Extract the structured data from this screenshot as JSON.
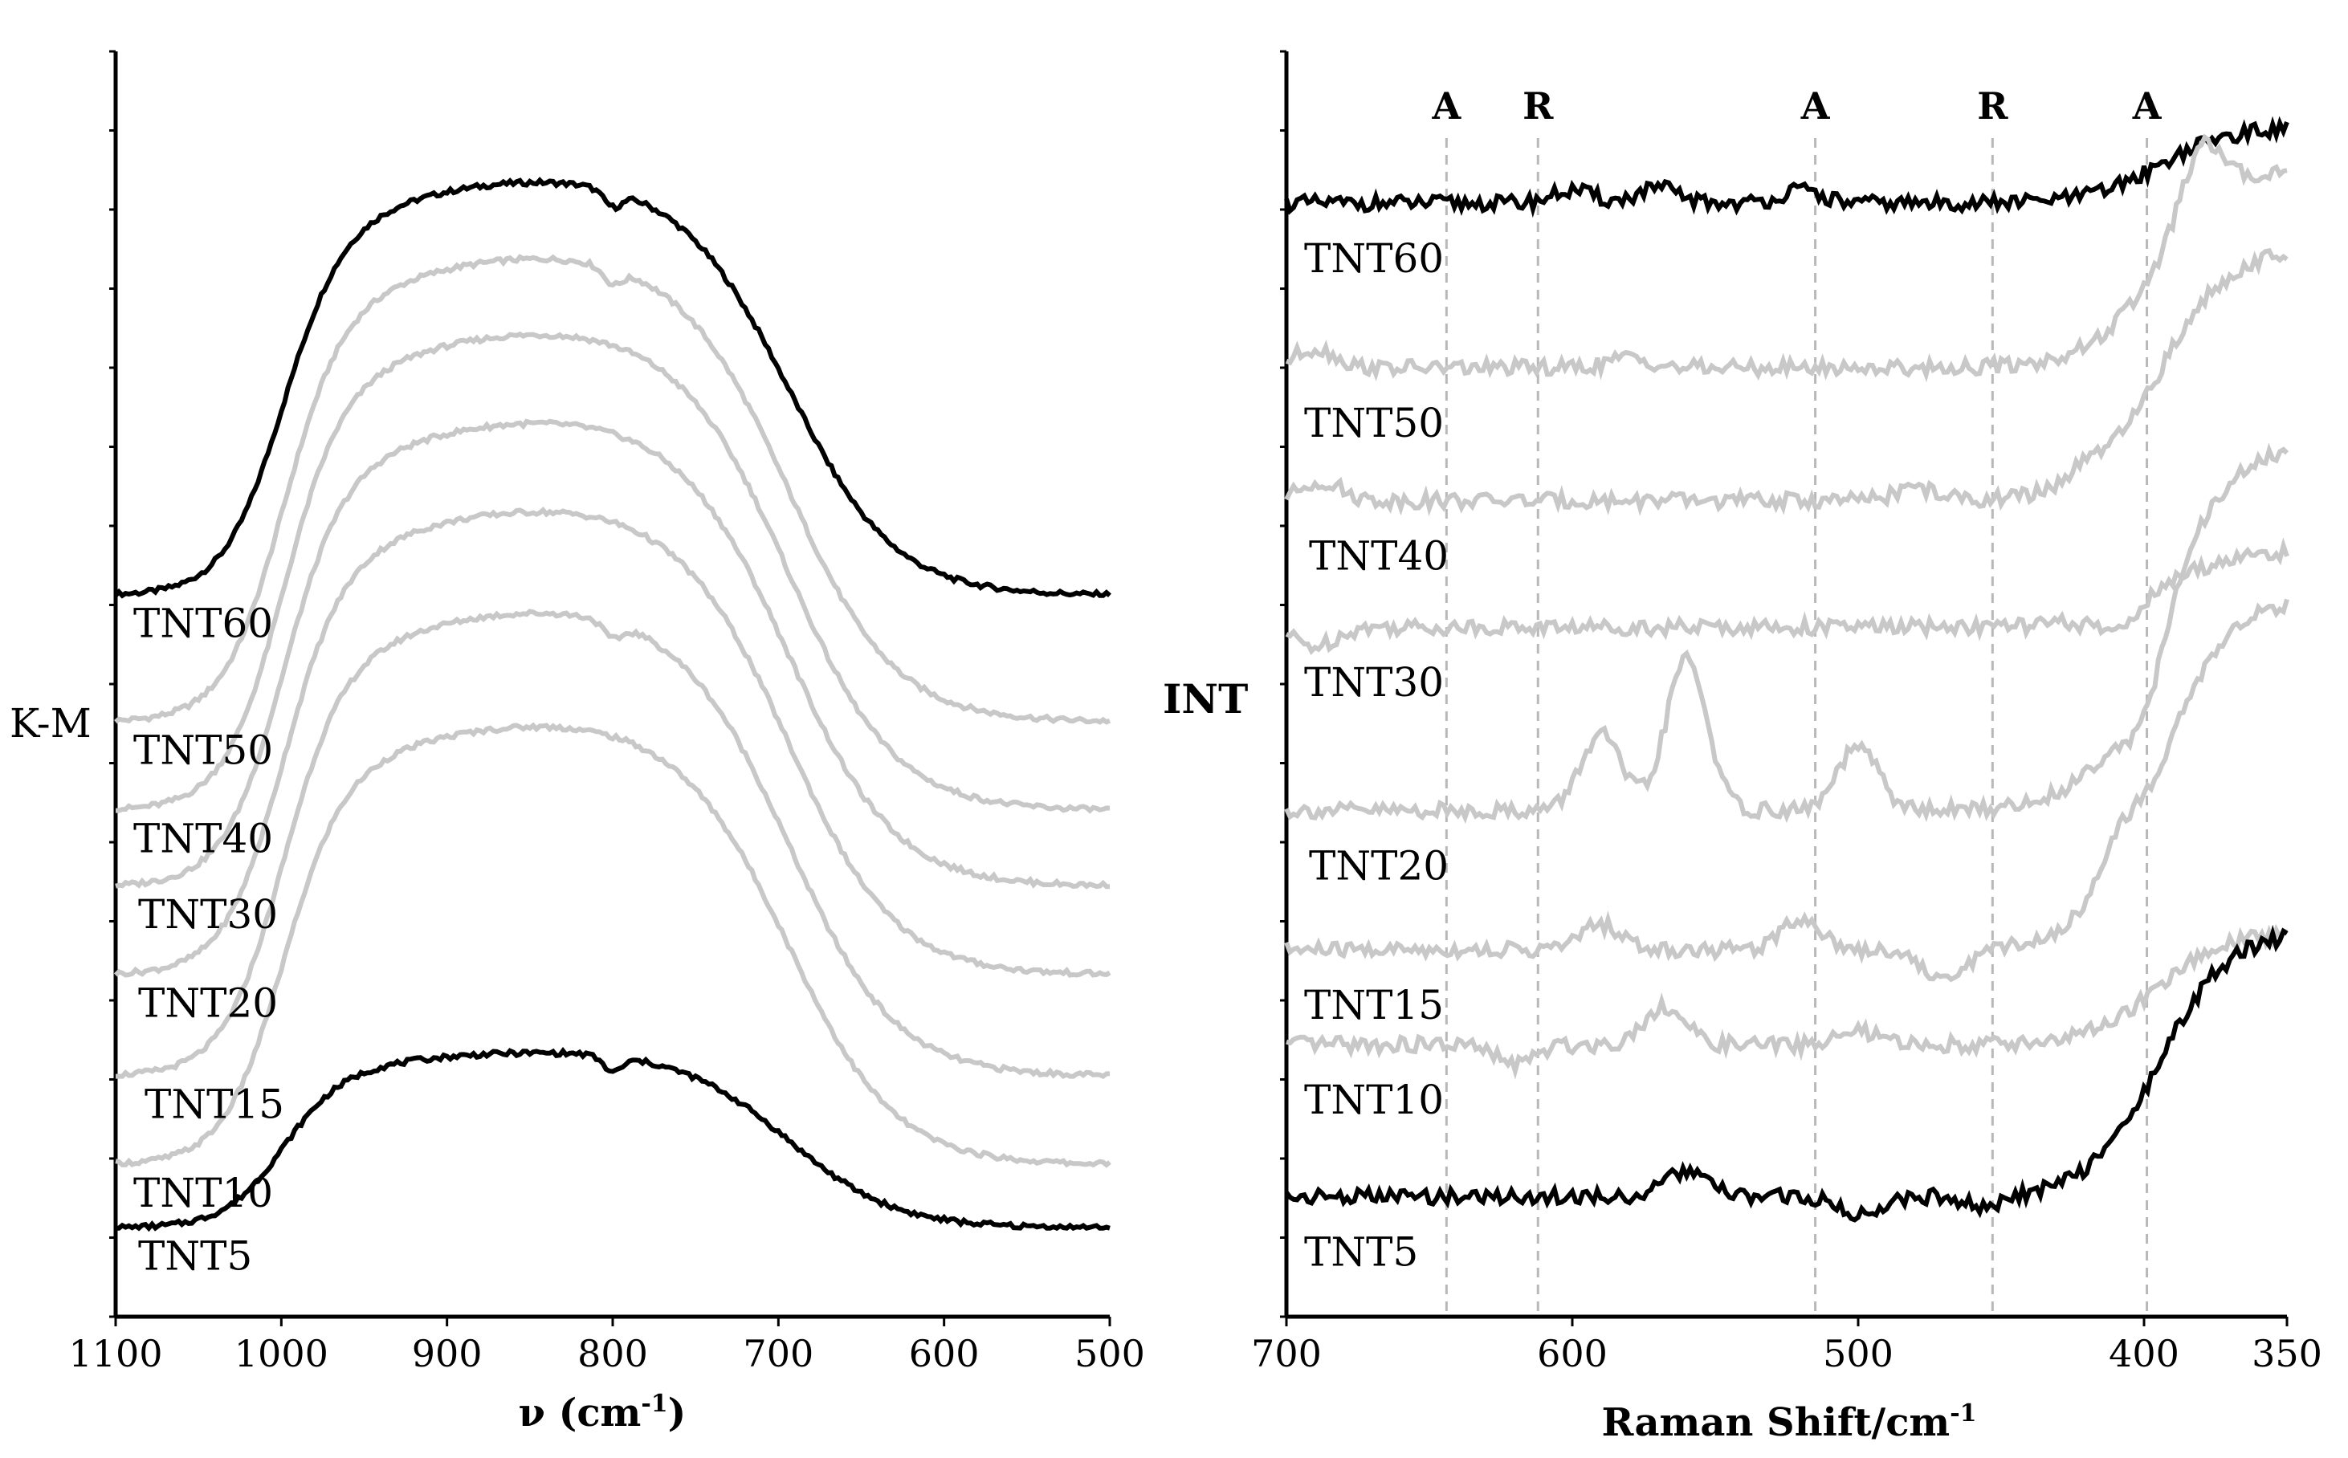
{
  "chart_data": [
    {
      "type": "line",
      "title": "",
      "xlabel": "ν (cm-1)",
      "xlabel_parts": {
        "main": "ν (cm",
        "sup": "-1",
        "end": ")"
      },
      "ylabel": "K-M",
      "x_reversed": true,
      "xlim": [
        1100,
        500
      ],
      "xticks": [
        "1100",
        "1000",
        "900",
        "800",
        "700",
        "600",
        "500"
      ],
      "stacked_offset": true,
      "series": [
        {
          "name": "TNT60",
          "color": "#000000",
          "baseline": 0.57,
          "height": 0.9,
          "dips": [
            800
          ]
        },
        {
          "name": "TNT50",
          "color": "#c8c8c8",
          "baseline": 0.47,
          "height": 0.84,
          "dips": [
            800
          ]
        },
        {
          "name": "TNT40",
          "color": "#c8c8c8",
          "baseline": 0.4,
          "height": 0.78,
          "dips": []
        },
        {
          "name": "TNT30",
          "color": "#c8c8c8",
          "baseline": 0.34,
          "height": 0.71,
          "dips": []
        },
        {
          "name": "TNT20",
          "color": "#c8c8c8",
          "baseline": 0.27,
          "height": 0.64,
          "dips": []
        },
        {
          "name": "TNT15",
          "color": "#c8c8c8",
          "baseline": 0.19,
          "height": 0.56,
          "dips": [
            800
          ]
        },
        {
          "name": "TNT10",
          "color": "#c8c8c8",
          "baseline": 0.12,
          "height": 0.47,
          "dips": []
        },
        {
          "name": "TNT5",
          "color": "#000000",
          "baseline": 0.07,
          "height": 0.21,
          "dips": [
            800
          ]
        }
      ]
    },
    {
      "type": "line",
      "title": "",
      "xlabel": "Raman Shift/cm-1",
      "xlabel_parts": {
        "main": "Raman Shift/cm",
        "sup": "-1",
        "end": ""
      },
      "ylabel": "INT",
      "x_reversed": true,
      "xlim": [
        700,
        350
      ],
      "xticks": [
        "700",
        "600",
        "500",
        "400",
        "350"
      ],
      "stacked_offset": true,
      "reference_lines": [
        {
          "label": "A",
          "x": 644
        },
        {
          "label": "R",
          "x": 612
        },
        {
          "label": "A",
          "x": 515
        },
        {
          "label": "R",
          "x": 453
        },
        {
          "label": "A",
          "x": 399
        }
      ],
      "series": [
        {
          "name": "TNT60",
          "color": "#000000",
          "baseline": 0.88,
          "rise": 0.06,
          "bumps": [
            [
              600,
              0.01
            ],
            [
              570,
              0.012
            ],
            [
              520,
              0.01
            ]
          ]
        },
        {
          "name": "TNT50",
          "color": "#c8c8c8",
          "baseline": 0.75,
          "rise": 0.16,
          "bumps": [
            [
              690,
              0.015
            ],
            [
              580,
              0.008
            ],
            [
              380,
              0.05
            ]
          ]
        },
        {
          "name": "TNT40",
          "color": "#c8c8c8",
          "baseline": 0.645,
          "rise": 0.2,
          "bumps": [
            [
              688,
              0.015
            ],
            [
              480,
              0.01
            ],
            [
              420,
              0.01
            ]
          ]
        },
        {
          "name": "TNT30",
          "color": "#c8c8c8",
          "baseline": 0.545,
          "rise": 0.06,
          "bumps": [
            [
              690,
              -0.015
            ],
            [
              410,
              -0.015
            ]
          ]
        },
        {
          "name": "TNT20",
          "color": "#c8c8c8",
          "baseline": 0.4,
          "rise": 0.29,
          "bumps": [
            [
              590,
              0.06
            ],
            [
              560,
              0.12
            ],
            [
              500,
              0.05
            ],
            [
              400,
              -0.04
            ]
          ]
        },
        {
          "name": "TNT15",
          "color": "#c8c8c8",
          "baseline": 0.29,
          "rise": 0.28,
          "bumps": [
            [
              590,
              0.02
            ],
            [
              520,
              0.025
            ],
            [
              470,
              -0.025
            ],
            [
              410,
              0.03
            ]
          ]
        },
        {
          "name": "TNT10",
          "color": "#c8c8c8",
          "baseline": 0.215,
          "rise": 0.09,
          "bumps": [
            [
              620,
              -0.015
            ],
            [
              568,
              0.03
            ],
            [
              500,
              0.01
            ]
          ]
        },
        {
          "name": "TNT5",
          "color": "#000000",
          "baseline": 0.095,
          "rise": 0.21,
          "bumps": [
            [
              560,
              0.02
            ],
            [
              500,
              -0.015
            ],
            [
              455,
              -0.01
            ]
          ]
        }
      ]
    }
  ]
}
